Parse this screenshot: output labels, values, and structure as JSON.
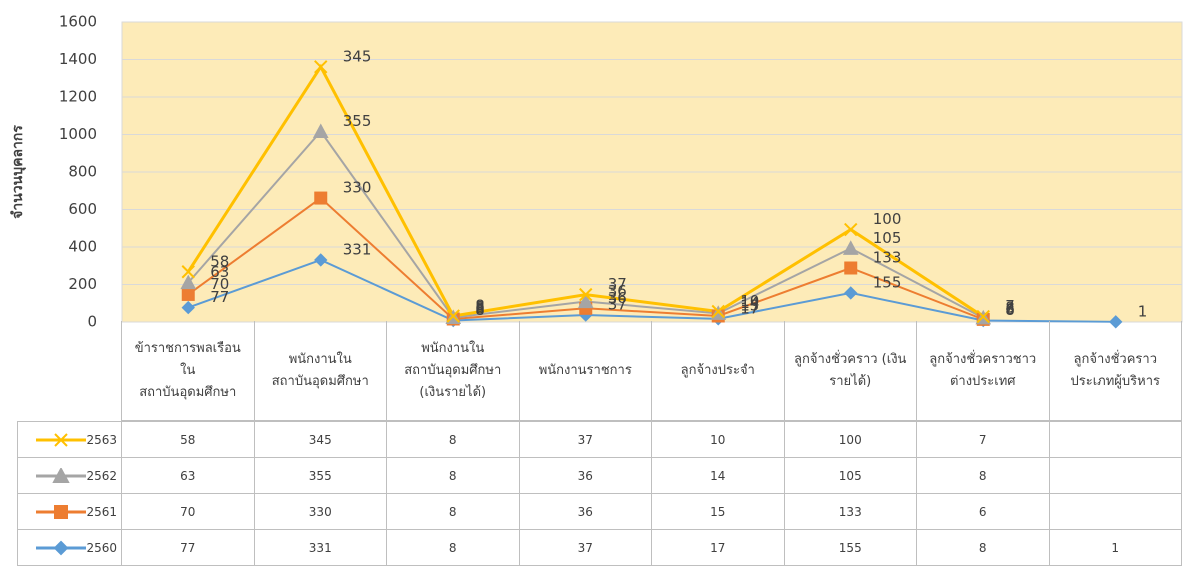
{
  "chart_data": {
    "type": "stacked-line",
    "y_label": "จำนวนบุคลากร",
    "categories": [
      "ข้าราชการพลเรือน\nใน\nสถาบันอุดมศึกษา",
      "พนักงานใน\nสถาบันอุดมศึกษา",
      "พนักงานใน\nสถาบันอุดมศึกษา\n(เงินรายได้)",
      "พนักงานราชการ",
      "ลูกจ้างประจำ",
      "ลูกจ้างชั่วคราว (เงิน\nรายได้)",
      "ลูกจ้างชั่วคราวชาว\nต่างประเทศ",
      "ลูกจ้างชั่วคราว\nประเภทผู้บริหาร"
    ],
    "series": [
      {
        "name": "2563",
        "color": "#ffc000",
        "marker": "x",
        "values": [
          58,
          345,
          8,
          37,
          10,
          100,
          7,
          null
        ]
      },
      {
        "name": "2562",
        "color": "#a5a5a5",
        "marker": "triangle",
        "values": [
          63,
          355,
          8,
          36,
          14,
          105,
          8,
          null
        ]
      },
      {
        "name": "2561",
        "color": "#ed7d31",
        "marker": "square",
        "values": [
          70,
          330,
          8,
          36,
          15,
          133,
          6,
          null
        ]
      },
      {
        "name": "2560",
        "color": "#5b9bd5",
        "marker": "diamond",
        "values": [
          77,
          331,
          8,
          37,
          17,
          155,
          8,
          1
        ]
      }
    ],
    "ylim": [
      0,
      1600
    ],
    "yticks": [
      0,
      200,
      400,
      600,
      800,
      1000,
      1200,
      1400,
      1600
    ],
    "plot_background": "#fdebb8"
  }
}
